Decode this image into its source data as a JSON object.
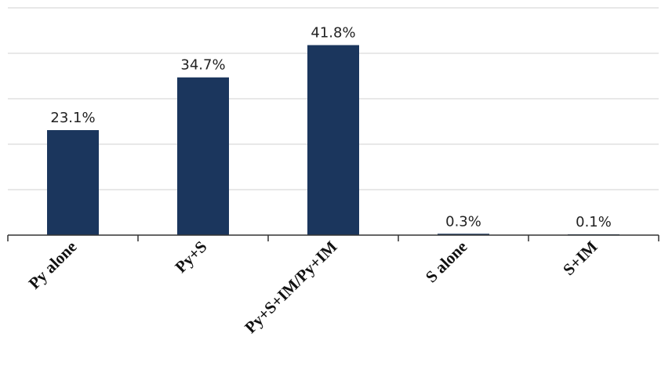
{
  "chart_data": {
    "type": "bar",
    "categories": [
      "Py alone",
      "Py+S",
      "Py+S+IM/Py+IM",
      "S alone",
      "S+IM"
    ],
    "values": [
      23.1,
      34.7,
      41.8,
      0.3,
      0.1
    ],
    "data_labels": [
      "23.1%",
      "34.7%",
      "41.8%",
      "0.3%",
      "0.1%"
    ],
    "ylim": [
      0,
      50
    ],
    "ytick_step": 10,
    "grid": true,
    "y_tick_labels_visible": false,
    "bar_color": "#1b365d",
    "title": "",
    "xlabel": "",
    "ylabel": ""
  }
}
